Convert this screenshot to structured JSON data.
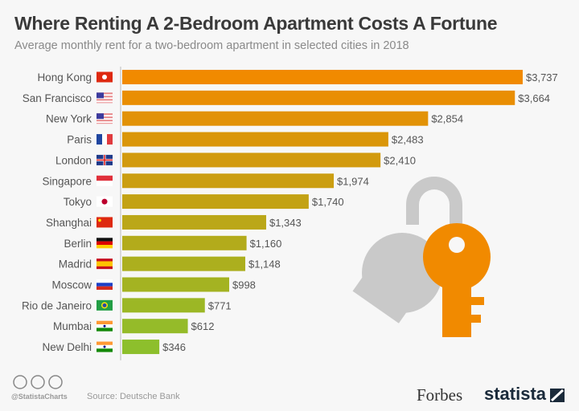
{
  "chart_data": {
    "type": "bar",
    "orientation": "horizontal",
    "title": "Where Renting A 2-Bedroom Apartment Costs A Fortune",
    "subtitle": "Average monthly rent for a two-bedroom apartment in selected cities in 2018",
    "categories": [
      "Hong Kong",
      "San Francisco",
      "New York",
      "Paris",
      "London",
      "Singapore",
      "Tokyo",
      "Shanghai",
      "Berlin",
      "Madrid",
      "Moscow",
      "Rio de Janeiro",
      "Mumbai",
      "New Delhi"
    ],
    "values": [
      3737,
      3664,
      2854,
      2483,
      2410,
      1974,
      1740,
      1343,
      1160,
      1148,
      998,
      771,
      612,
      346
    ],
    "labels": [
      "$3,737",
      "$3,664",
      "$2,854",
      "$2,483",
      "$2,410",
      "$1,974",
      "$1,740",
      "$1,343",
      "$1,160",
      "$1,148",
      "$998",
      "$771",
      "$612",
      "$346"
    ],
    "flags": [
      "hk",
      "us",
      "us",
      "fr",
      "gb",
      "sg",
      "jp",
      "cn",
      "de",
      "es",
      "ru",
      "br",
      "in",
      "in"
    ],
    "unit": "USD",
    "color_start": "#f18a00",
    "color_end": "#8dbf2c",
    "grid": false
  },
  "footer": {
    "handle": "@StatistaCharts",
    "source": "Source: Deutsche Bank",
    "brand_forbes": "Forbes",
    "brand_statista": "statista"
  },
  "illustration": "keys-icon"
}
